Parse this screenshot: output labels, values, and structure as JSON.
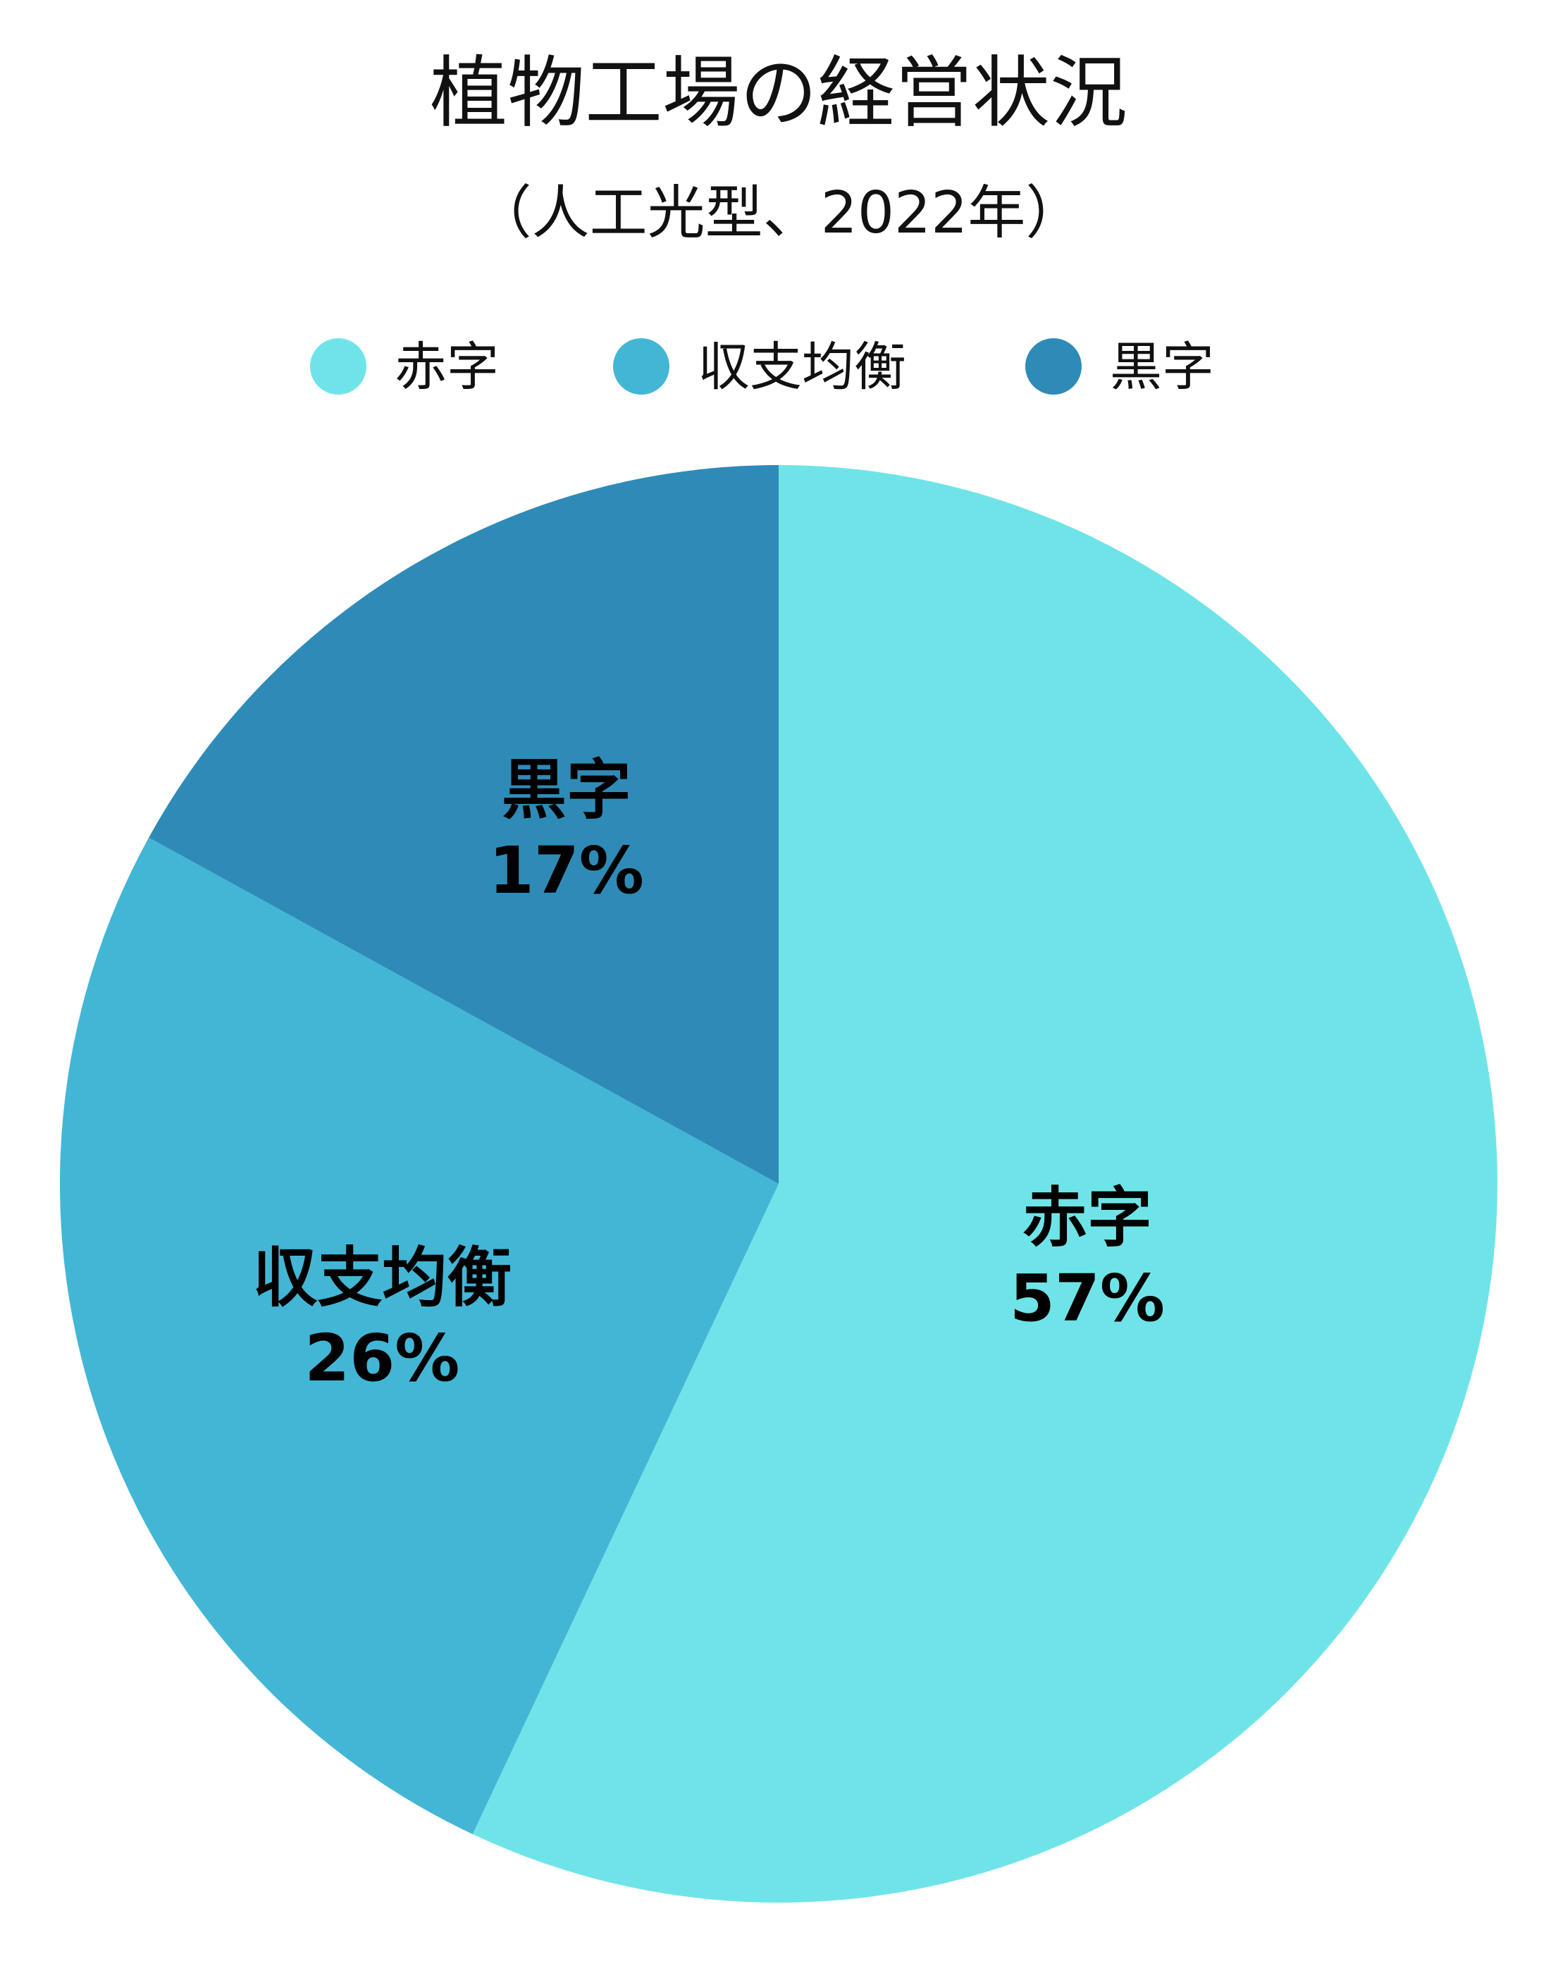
{
  "chart_data": {
    "type": "pie",
    "title": "植物工場の経営状況",
    "subtitle": "（人工光型、2022年）",
    "legend_position": "top",
    "categories": [
      "赤字",
      "収支均衡",
      "黒字"
    ],
    "values": [
      57,
      26,
      17
    ],
    "value_labels": [
      "57%",
      "26%",
      "17%"
    ],
    "colors": [
      "#6fe4e8",
      "#43b6d6",
      "#2e8bb8"
    ],
    "start_angle": "12 o'clock",
    "direction": "clockwise"
  }
}
